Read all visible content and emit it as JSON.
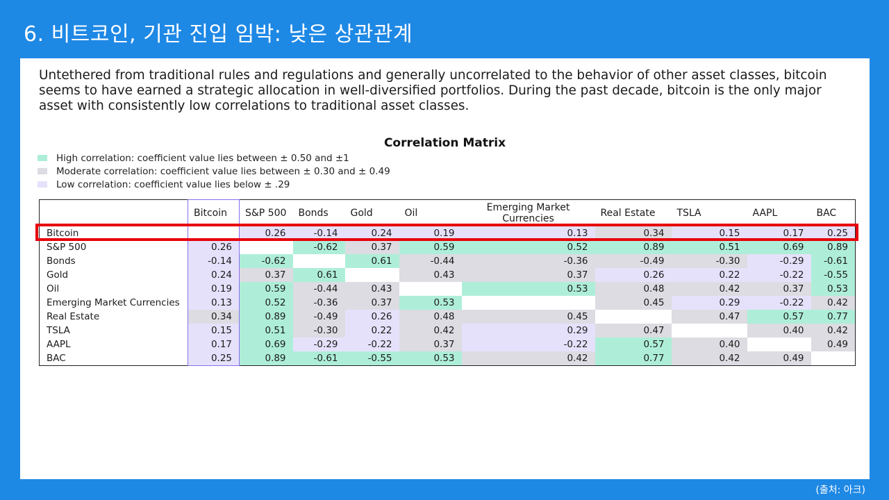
{
  "slide": {
    "title": "6. 비트코인, 기관 진입 임박: 낮은 상관관계",
    "source": "(출처: 아크)"
  },
  "intro": "Untethered from traditional rules and regulations and generally uncorrelated to the behavior of other asset classes, bitcoin seems to have earned a strategic allocation in well-diversified portfolios. During the past decade, bitcoin is the only major asset with consistently low correlations to traditional asset classes.",
  "colors": {
    "high": "#aeeed8",
    "moderate": "#dcdce2",
    "low": "#e6e1fb",
    "accent_border": "#8a6cf0",
    "highlight": "#e8000b"
  },
  "chart_data": {
    "type": "table",
    "title": "Correlation Matrix",
    "legend": [
      {
        "level": "high",
        "label": "High correlation: coefficient value lies between ± 0.50 and ±1"
      },
      {
        "level": "moderate",
        "label": "Moderate correlation: coefficient value lies between ± 0.30 and ± 0.49"
      },
      {
        "level": "low",
        "label": "Low correlation: coefficient value lies below ± .29"
      }
    ],
    "columns": [
      "Bitcoin",
      "S&P 500",
      "Bonds",
      "Gold",
      "Oil",
      "Emerging Market Currencies",
      "Real Estate",
      "TSLA",
      "AAPL",
      "BAC"
    ],
    "rows": [
      {
        "label": "Bitcoin",
        "values": [
          null,
          "0.26",
          "-0.14",
          "0.24",
          "0.19",
          "0.13",
          "0.34",
          "0.15",
          "0.17",
          "0.25"
        ]
      },
      {
        "label": "S&P 500",
        "values": [
          "0.26",
          null,
          "-0.62",
          "0.37",
          "0.59",
          "0.52",
          "0.89",
          "0.51",
          "0.69",
          "0.89"
        ]
      },
      {
        "label": "Bonds",
        "values": [
          "-0.14",
          "-0.62",
          null,
          "0.61",
          "-0.44",
          "-0.36",
          "-0.49",
          "-0.30",
          "-0.29",
          "-0.61"
        ]
      },
      {
        "label": "Gold",
        "values": [
          "0.24",
          "0.37",
          "0.61",
          null,
          "0.43",
          "0.37",
          "0.26",
          "0.22",
          "-0.22",
          "-0.55"
        ]
      },
      {
        "label": "Oil",
        "values": [
          "0.19",
          "0.59",
          "-0.44",
          "0.43",
          null,
          "0.53",
          "0.48",
          "0.42",
          "0.37",
          "0.53"
        ]
      },
      {
        "label": "Emerging Market Currencies",
        "values": [
          "0.13",
          "0.52",
          "-0.36",
          "0.37",
          "0.53",
          null,
          "0.45",
          "0.29",
          "-0.22",
          "0.42"
        ]
      },
      {
        "label": "Real Estate",
        "values": [
          "0.34",
          "0.89",
          "-0.49",
          "0.26",
          "0.48",
          "0.45",
          null,
          "0.47",
          "0.57",
          "0.77"
        ]
      },
      {
        "label": "TSLA",
        "values": [
          "0.15",
          "0.51",
          "-0.30",
          "0.22",
          "0.42",
          "0.29",
          "0.47",
          null,
          "0.40",
          "0.42"
        ]
      },
      {
        "label": "AAPL",
        "values": [
          "0.17",
          "0.69",
          "-0.29",
          "-0.22",
          "0.37",
          "-0.22",
          "0.57",
          "0.40",
          null,
          "0.49"
        ]
      },
      {
        "label": "BAC",
        "values": [
          "0.25",
          "0.89",
          "-0.61",
          "-0.55",
          "0.53",
          "0.42",
          "0.77",
          "0.42",
          "0.49",
          null
        ]
      }
    ],
    "highlighted_row": "Bitcoin"
  }
}
